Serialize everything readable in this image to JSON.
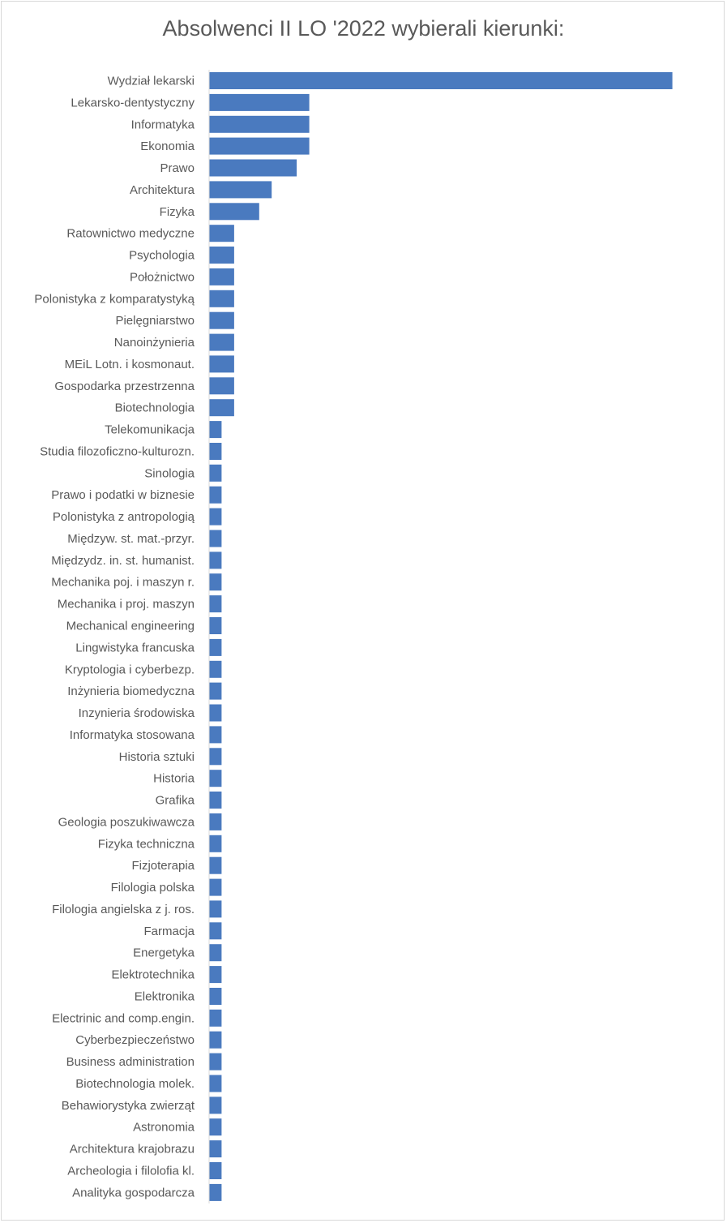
{
  "chart_data": {
    "type": "bar",
    "orientation": "horizontal",
    "title": "Absolwenci II LO '2022 wybierali kierunki:",
    "xlabel": "",
    "ylabel": "",
    "xlim": [
      0,
      38
    ],
    "grid": false,
    "legend": "none",
    "bar_color": "#4a7abf",
    "axis_color": "#d9d9d9",
    "categories": [
      "Wydział lekarski",
      "Lekarsko-dentystyczny",
      "Informatyka",
      "Ekonomia",
      "Prawo",
      "Architektura",
      "Fizyka",
      "Ratownictwo medyczne",
      "Psychologia",
      "Położnictwo",
      "Polonistyka z komparatystyką",
      "Pielęgniarstwo",
      "Nanoinżynieria",
      "MEiL Lotn. i kosmonaut.",
      "Gospodarka przestrzenna",
      "Biotechnologia",
      "Telekomunikacja",
      "Studia filozoficzno-kulturozn.",
      "Sinologia",
      "Prawo i podatki w biznesie",
      "Polonistyka z antropologią",
      "Międzyw. st. mat.-przyr.",
      "Międzydz. in. st. humanist.",
      "Mechanika poj. i maszyn r.",
      "Mechanika i proj. maszyn",
      "Mechanical engineering",
      "Lingwistyka francuska",
      "Kryptologia i cyberbezp.",
      "Inżynieria biomedyczna",
      "Inzynieria środowiska",
      "Informatyka stosowana",
      "Historia sztuki",
      "Historia",
      "Grafika",
      "Geologia poszukiwawcza",
      "Fizyka techniczna",
      "Fizjoterapia",
      "Filologia polska",
      "Filologia angielska z j. ros.",
      "Farmacja",
      "Energetyka",
      "Elektrotechnika",
      "Elektronika",
      "Electrinic and comp.engin.",
      "Cyberbezpieczeństwo",
      "Business administration",
      "Biotechnologia molek.",
      "Behawiorystyka zwierząt",
      "Astronomia",
      "Architektura  krajobrazu",
      "Archeologia i filolofia kl.",
      "Analityka gospodarcza"
    ],
    "values": [
      37,
      8,
      8,
      8,
      7,
      5,
      4,
      2,
      2,
      2,
      2,
      2,
      2,
      2,
      2,
      2,
      1,
      1,
      1,
      1,
      1,
      1,
      1,
      1,
      1,
      1,
      1,
      1,
      1,
      1,
      1,
      1,
      1,
      1,
      1,
      1,
      1,
      1,
      1,
      1,
      1,
      1,
      1,
      1,
      1,
      1,
      1,
      1,
      1,
      1,
      1,
      1
    ]
  }
}
